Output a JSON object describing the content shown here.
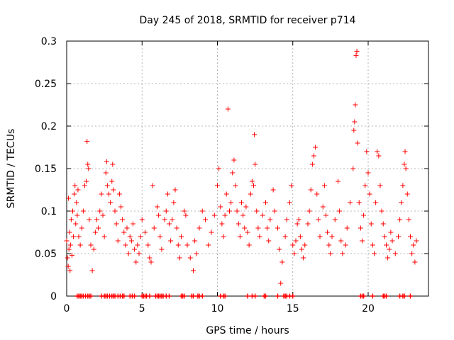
{
  "chart_data": {
    "type": "scatter",
    "title": "Day 245 of 2018, SRMTID for receiver p714",
    "xlabel": "GPS time / hours",
    "ylabel": "SRMTID / TECUs",
    "xlim": [
      0,
      24
    ],
    "ylim": [
      0,
      0.3
    ],
    "xticks": [
      0,
      5,
      10,
      15,
      20
    ],
    "xtick_labels": [
      "0",
      "5",
      "10",
      "15",
      "20"
    ],
    "yticks": [
      0,
      0.05,
      0.1,
      0.15,
      0.2,
      0.25,
      0.3
    ],
    "ytick_labels": [
      "0",
      "0.05",
      "0.1",
      "0.15",
      "0.2",
      "0.25",
      "0.3"
    ],
    "grid": true,
    "marker": "+",
    "color": "#ff0000",
    "series": [
      {
        "name": "SRMTID",
        "points": [
          [
            0.0,
            0.065
          ],
          [
            0.05,
            0.045
          ],
          [
            0.1,
            0.035
          ],
          [
            0.12,
            0.115
          ],
          [
            0.15,
            0.055
          ],
          [
            0.2,
            0.075
          ],
          [
            0.22,
            0.03
          ],
          [
            0.25,
            0.06
          ],
          [
            0.3,
            0.09
          ],
          [
            0.35,
            0.048
          ],
          [
            0.4,
            0.1
          ],
          [
            0.45,
            0.07
          ],
          [
            0.5,
            0.12
          ],
          [
            0.55,
            0.13
          ],
          [
            0.6,
            0.085
          ],
          [
            0.65,
            0.11
          ],
          [
            0.7,
            0.095
          ],
          [
            0.75,
            0.125
          ],
          [
            0.8,
            0.07
          ],
          [
            0.9,
            0.06
          ],
          [
            1.0,
            0.08
          ],
          [
            1.1,
            0.1
          ],
          [
            1.2,
            0.13
          ],
          [
            1.3,
            0.135
          ],
          [
            1.35,
            0.182
          ],
          [
            1.4,
            0.155
          ],
          [
            1.45,
            0.15
          ],
          [
            1.5,
            0.09
          ],
          [
            1.6,
            0.06
          ],
          [
            1.7,
            0.03
          ],
          [
            1.8,
            0.055
          ],
          [
            1.9,
            0.075
          ],
          [
            2.0,
            0.09
          ],
          [
            2.1,
            0.08
          ],
          [
            2.2,
            0.1
          ],
          [
            2.3,
            0.12
          ],
          [
            2.4,
            0.095
          ],
          [
            2.5,
            0.07
          ],
          [
            2.6,
            0.145
          ],
          [
            2.65,
            0.158
          ],
          [
            2.7,
            0.13
          ],
          [
            2.8,
            0.12
          ],
          [
            2.9,
            0.11
          ],
          [
            3.0,
            0.135
          ],
          [
            3.05,
            0.155
          ],
          [
            3.1,
            0.125
          ],
          [
            3.2,
            0.1
          ],
          [
            3.3,
            0.085
          ],
          [
            3.4,
            0.065
          ],
          [
            3.5,
            0.12
          ],
          [
            3.6,
            0.105
          ],
          [
            3.7,
            0.09
          ],
          [
            3.8,
            0.075
          ],
          [
            3.9,
            0.06
          ],
          [
            4.0,
            0.08
          ],
          [
            4.1,
            0.05
          ],
          [
            4.2,
            0.07
          ],
          [
            4.3,
            0.065
          ],
          [
            4.4,
            0.085
          ],
          [
            4.5,
            0.055
          ],
          [
            4.6,
            0.04
          ],
          [
            4.7,
            0.06
          ],
          [
            4.8,
            0.05
          ],
          [
            4.9,
            0.07
          ],
          [
            5.0,
            0.09
          ],
          [
            5.2,
            0.075
          ],
          [
            5.4,
            0.06
          ],
          [
            5.5,
            0.045
          ],
          [
            5.6,
            0.04
          ],
          [
            5.7,
            0.13
          ],
          [
            5.8,
            0.08
          ],
          [
            6.0,
            0.105
          ],
          [
            6.1,
            0.095
          ],
          [
            6.2,
            0.07
          ],
          [
            6.3,
            0.055
          ],
          [
            6.5,
            0.09
          ],
          [
            6.6,
            0.1
          ],
          [
            6.7,
            0.12
          ],
          [
            6.8,
            0.085
          ],
          [
            6.9,
            0.065
          ],
          [
            7.0,
            0.09
          ],
          [
            7.1,
            0.11
          ],
          [
            7.2,
            0.125
          ],
          [
            7.3,
            0.08
          ],
          [
            7.4,
            0.06
          ],
          [
            7.5,
            0.045
          ],
          [
            7.6,
            0.07
          ],
          [
            7.8,
            0.1
          ],
          [
            7.9,
            0.095
          ],
          [
            8.0,
            0.06
          ],
          [
            8.2,
            0.045
          ],
          [
            8.4,
            0.03
          ],
          [
            8.5,
            0.065
          ],
          [
            8.6,
            0.05
          ],
          [
            8.8,
            0.08
          ],
          [
            9.0,
            0.1
          ],
          [
            9.2,
            0.09
          ],
          [
            9.4,
            0.06
          ],
          [
            9.6,
            0.075
          ],
          [
            9.8,
            0.095
          ],
          [
            10.0,
            0.13
          ],
          [
            10.1,
            0.15
          ],
          [
            10.2,
            0.105
          ],
          [
            10.3,
            0.085
          ],
          [
            10.4,
            0.07
          ],
          [
            10.5,
            0.095
          ],
          [
            10.6,
            0.12
          ],
          [
            10.7,
            0.22
          ],
          [
            10.8,
            0.1
          ],
          [
            10.9,
            0.11
          ],
          [
            11.0,
            0.145
          ],
          [
            11.1,
            0.16
          ],
          [
            11.2,
            0.13
          ],
          [
            11.3,
            0.1
          ],
          [
            11.4,
            0.085
          ],
          [
            11.5,
            0.07
          ],
          [
            11.6,
            0.11
          ],
          [
            11.7,
            0.095
          ],
          [
            11.8,
            0.08
          ],
          [
            11.9,
            0.105
          ],
          [
            12.0,
            0.075
          ],
          [
            12.1,
            0.06
          ],
          [
            12.2,
            0.12
          ],
          [
            12.3,
            0.135
          ],
          [
            12.4,
            0.13
          ],
          [
            12.45,
            0.19
          ],
          [
            12.5,
            0.155
          ],
          [
            12.6,
            0.1
          ],
          [
            12.7,
            0.08
          ],
          [
            12.8,
            0.07
          ],
          [
            13.0,
            0.095
          ],
          [
            13.2,
            0.11
          ],
          [
            13.3,
            0.08
          ],
          [
            13.4,
            0.065
          ],
          [
            13.5,
            0.09
          ],
          [
            13.7,
            0.125
          ],
          [
            13.8,
            0.1
          ],
          [
            14.0,
            0.08
          ],
          [
            14.1,
            0.055
          ],
          [
            14.2,
            0.015
          ],
          [
            14.3,
            0.04
          ],
          [
            14.5,
            0.07
          ],
          [
            14.6,
            0.09
          ],
          [
            14.8,
            0.11
          ],
          [
            14.9,
            0.13
          ],
          [
            15.0,
            0.06
          ],
          [
            15.1,
            0.05
          ],
          [
            15.2,
            0.065
          ],
          [
            15.3,
            0.085
          ],
          [
            15.4,
            0.09
          ],
          [
            15.5,
            0.07
          ],
          [
            15.6,
            0.055
          ],
          [
            15.7,
            0.045
          ],
          [
            15.8,
            0.06
          ],
          [
            16.0,
            0.085
          ],
          [
            16.1,
            0.1
          ],
          [
            16.2,
            0.125
          ],
          [
            16.3,
            0.155
          ],
          [
            16.4,
            0.165
          ],
          [
            16.5,
            0.175
          ],
          [
            16.6,
            0.12
          ],
          [
            16.7,
            0.09
          ],
          [
            16.8,
            0.07
          ],
          [
            17.0,
            0.105
          ],
          [
            17.1,
            0.13
          ],
          [
            17.2,
            0.095
          ],
          [
            17.3,
            0.075
          ],
          [
            17.4,
            0.06
          ],
          [
            17.5,
            0.05
          ],
          [
            17.6,
            0.07
          ],
          [
            17.8,
            0.09
          ],
          [
            18.0,
            0.135
          ],
          [
            18.1,
            0.1
          ],
          [
            18.2,
            0.065
          ],
          [
            18.3,
            0.05
          ],
          [
            18.5,
            0.06
          ],
          [
            18.6,
            0.08
          ],
          [
            18.8,
            0.11
          ],
          [
            19.0,
            0.15
          ],
          [
            19.05,
            0.195
          ],
          [
            19.1,
            0.205
          ],
          [
            19.15,
            0.225
          ],
          [
            19.2,
            0.283
          ],
          [
            19.25,
            0.288
          ],
          [
            19.3,
            0.18
          ],
          [
            19.4,
            0.11
          ],
          [
            19.5,
            0.08
          ],
          [
            19.6,
            0.065
          ],
          [
            19.7,
            0.095
          ],
          [
            19.8,
            0.13
          ],
          [
            19.9,
            0.17
          ],
          [
            20.0,
            0.145
          ],
          [
            20.1,
            0.12
          ],
          [
            20.2,
            0.085
          ],
          [
            20.3,
            0.06
          ],
          [
            20.4,
            0.05
          ],
          [
            20.5,
            0.11
          ],
          [
            20.6,
            0.17
          ],
          [
            20.7,
            0.165
          ],
          [
            20.8,
            0.13
          ],
          [
            20.9,
            0.1
          ],
          [
            21.0,
            0.085
          ],
          [
            21.1,
            0.07
          ],
          [
            21.2,
            0.06
          ],
          [
            21.3,
            0.045
          ],
          [
            21.4,
            0.055
          ],
          [
            21.5,
            0.075
          ],
          [
            21.6,
            0.065
          ],
          [
            21.8,
            0.05
          ],
          [
            22.0,
            0.07
          ],
          [
            22.1,
            0.09
          ],
          [
            22.2,
            0.11
          ],
          [
            22.3,
            0.13
          ],
          [
            22.4,
            0.155
          ],
          [
            22.45,
            0.17
          ],
          [
            22.5,
            0.15
          ],
          [
            22.6,
            0.12
          ],
          [
            22.7,
            0.09
          ],
          [
            22.8,
            0.07
          ],
          [
            22.9,
            0.05
          ],
          [
            23.0,
            0.06
          ],
          [
            23.1,
            0.04
          ],
          [
            23.2,
            0.065
          ]
        ]
      }
    ],
    "zero_markers_x": [
      0.7,
      0.8,
      0.9,
      1.0,
      1.1,
      1.25,
      1.4,
      1.5,
      1.6,
      2.3,
      2.5,
      2.6,
      2.7,
      2.85,
      3.0,
      3.1,
      3.2,
      3.4,
      3.55,
      3.7,
      3.8,
      4.2,
      4.35,
      4.5,
      5.0,
      5.1,
      5.2,
      5.3,
      5.5,
      5.9,
      6.0,
      6.1,
      6.2,
      6.3,
      6.4,
      6.6,
      6.8,
      7.6,
      7.7,
      7.8,
      8.3,
      8.4,
      8.7,
      8.8,
      9.0,
      10.2,
      10.4,
      10.5,
      12.0,
      12.3,
      12.5,
      13.1,
      13.2,
      14.0,
      14.4,
      14.5,
      14.6,
      14.8,
      15.0,
      19.5,
      19.6,
      19.7,
      20.3,
      21.0,
      21.1,
      21.2,
      22.1,
      22.3,
      22.4,
      22.8
    ]
  }
}
